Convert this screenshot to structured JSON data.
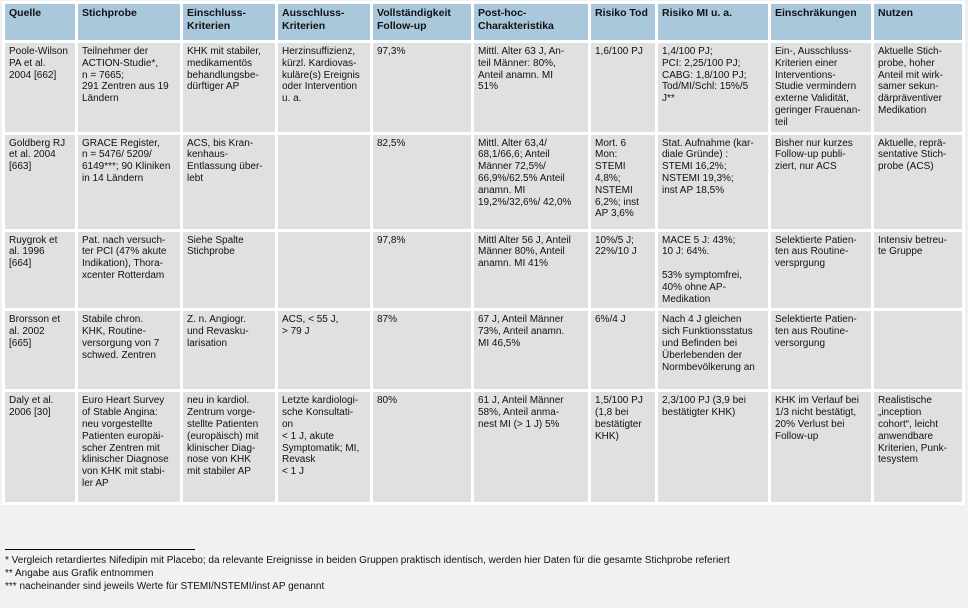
{
  "colors": {
    "page_background": "#f1f1f1",
    "header_background": "#a9c8dc",
    "cell_background": "#e0e0e0",
    "gap_color": "#ffffff",
    "text": "#111111"
  },
  "table": {
    "columns": [
      "Quelle",
      "Stichprobe",
      "Einschluss-\nKriterien",
      "Ausschluss-\nKriterien",
      "Vollständigkeit\nFollow-up",
      "Post-hoc-\nCharakteristika",
      "Risiko Tod",
      "Risiko MI u. a.",
      "Einschräkungen",
      "Nutzen"
    ],
    "rows": [
      {
        "cells": [
          "Poole-Wilson\nPA et al.\n2004 [662]",
          "Teilnehmer der\nACTION-Studie*,\nn = 7665;\n291 Zentren aus 19\nLändern",
          "KHK mit stabiler,\nmedikamentös\nbehandlungsbe-\ndürftiger AP",
          "Herzinsuffizienz,\nkürzl. Kardiovas-\nkuläre(s) Ereignis\noder Intervention\nu. a.",
          "97,3%",
          "Mittl. Alter 63 J, An-\nteil Männer: 80%,\nAnteil anamn. MI\n51%",
          "1,6/100 PJ",
          "1,4/100 PJ;\nPCI: 2,25/100 PJ;\nCABG: 1,8/100 PJ;\nTod/MI/Schl: 15%/5\nJ**",
          "Ein-, Ausschluss-\nKriterien einer\nInterventions-\nStudie vermindern\nexterne Validität,\ngeringer Frauenan-\nteil",
          "Aktuelle Stich-\nprobe, hoher\nAnteil mit wirk-\nsamer sekun-\ndärpräventiver\nMedikation"
        ]
      },
      {
        "cells": [
          "Goldberg RJ\net al. 2004\n[663]",
          "GRACE Register,\nn = 5476/ 5209/\n6149***; 90 Kliniken\nin 14 Ländern",
          "ACS, bis Kran-\nkenhaus-\nEntlassung über-\nlebt",
          "",
          "82,5%",
          "Mittl. Alter 63,4/\n68,1/66,6; Anteil\nMänner 72,5%/\n66,9%/62.5% Anteil\nanamn. MI\n19,2%/32,6%/ 42,0%",
          "Mort. 6\nMon:\nSTEMI\n4,8%;\nNSTEMI\n6,2%; inst\nAP 3,6%",
          "Stat. Aufnahme (kar-\ndiale Gründe) :\nSTEMI 16,2%;\nNSTEMI 19,3%;\ninst AP 18,5%",
          "Bisher nur kurzes\nFollow-up publi-\nziert, nur ACS",
          "Aktuelle, reprä-\nsentative Stich-\nprobe (ACS)"
        ]
      },
      {
        "cells": [
          "Ruygrok et\nal. 1996\n[664]",
          "Pat. nach versuch-\nter PCI (47% akute\nIndikation), Thora-\nxcenter Rotterdam",
          "Siehe Spalte\nStichprobe",
          "",
          "97,8%",
          "Mittl Alter 56 J, Anteil\nMänner 80%, Anteil\nanamn. MI 41%",
          "10%/5 J;\n22%/10 J",
          "MACE 5 J: 43%;\n10 J: 64%.\n\n53% symptomfrei,\n40% ohne AP-\nMedikation",
          "Selektierte Patien-\nten aus Routine-\nversprgung",
          "Intensiv betreu-\nte Gruppe"
        ]
      },
      {
        "cells": [
          "Brorsson et\nal. 2002\n[665]",
          "Stabile chron.\nKHK, Routine-\nversorgung von 7\nschwed. Zentren",
          "Z. n. Angiogr.\nund Revasku-\nlarisation",
          "ACS, < 55 J,\n> 79 J",
          "87%",
          "67 J, Anteil Männer\n73%, Anteil anamn.\nMI 46,5%",
          "6%/4 J",
          "Nach 4 J gleichen\nsich Funktionsstatus\nund Befinden bei\nÜberlebenden der\nNormbevölkerung an",
          "Selektierte Patien-\nten aus Routine-\nversorgung",
          ""
        ]
      },
      {
        "cells": [
          "Daly et al.\n2006 [30]",
          "Euro Heart Survey\nof Stable Angina:\nneu vorgestellte\nPatienten europäi-\nscher Zentren mit\nklinischer Diagnose\nvon KHK mit stabi-\nler AP",
          "neu in kardiol.\nZentrum vorge-\nstellte Patienten\n(europäisch) mit\nklinischer Diag-\nnose von KHK\nmit stabiler AP",
          "Letzte kardiologi-\nsche Konsultati-\non\n< 1 J, akute\nSymptomatik; MI,\nRevask\n< 1 J",
          "80%",
          "61 J, Anteil Männer\n58%, Anteil anma-\nnest MI (> 1 J) 5%",
          "1,5/100 PJ\n(1,8 bei\nbestätigter\nKHK)",
          "2,3/100 PJ (3,9 bei\nbestätigter KHK)",
          "KHK im Verlauf bei\n1/3 nicht bestätigt,\n20% Verlust bei\nFollow-up",
          "Realistische\n„inception\ncohort“, leicht\nanwendbare\nKriterien, Punk-\ntesystem"
        ]
      }
    ]
  },
  "footnotes": [
    "* Vergleich retardiertes Nifedipin mit Placebo; da relevante Ereignisse in beiden Gruppen praktisch identisch, werden hier Daten für die gesamte Stichprobe referiert",
    "** Angabe aus Grafik entnommen",
    "*** nacheinander sind jeweils Werte für STEMI/NSTEMI/inst AP genannt"
  ]
}
